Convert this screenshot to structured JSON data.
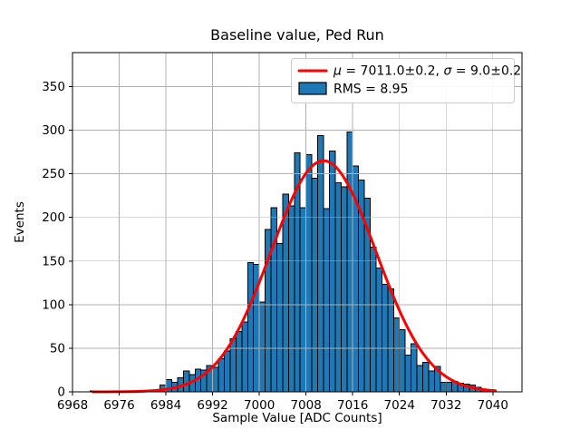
{
  "figure": {
    "title": "Baseline value, Ped Run",
    "xlabel": "Sample Value [ADC Counts]",
    "ylabel": "Events"
  },
  "legend": {
    "position": "upper right",
    "fit_label": "μ = 7011.0±0.2, σ = 9.0±0.2",
    "hist_label": "RMS = 8.95"
  },
  "colors": {
    "bar_fill": "#1f77b4",
    "bar_edge": "#000000",
    "fit_line": "#ff0000",
    "grid": "#b0b0b0",
    "axes": "#000000",
    "legend_border": "#cccccc",
    "background": "#ffffff"
  },
  "chart_data": {
    "type": "bar",
    "subtype": "histogram",
    "title": "Baseline value, Ped Run",
    "xlabel": "Sample Value [ADC Counts]",
    "ylabel": "Events",
    "xlim": [
      6968,
      7045
    ],
    "ylim": [
      0,
      389
    ],
    "x_ticks": [
      6968,
      6976,
      6984,
      6992,
      7000,
      7008,
      7016,
      7024,
      7032,
      7040
    ],
    "y_ticks": [
      0,
      50,
      100,
      150,
      200,
      250,
      300,
      350
    ],
    "grid": true,
    "bin_width": 1,
    "bins": [
      [
        6971,
        1
      ],
      [
        6983,
        8
      ],
      [
        6984,
        14
      ],
      [
        6985,
        11
      ],
      [
        6986,
        16
      ],
      [
        6987,
        24
      ],
      [
        6988,
        20
      ],
      [
        6989,
        26
      ],
      [
        6990,
        25
      ],
      [
        6991,
        30
      ],
      [
        6992,
        28
      ],
      [
        6993,
        38
      ],
      [
        6994,
        47
      ],
      [
        6995,
        61
      ],
      [
        6996,
        69
      ],
      [
        6997,
        80
      ],
      [
        6998,
        148
      ],
      [
        6999,
        146
      ],
      [
        7000,
        103
      ],
      [
        7001,
        186
      ],
      [
        7002,
        211
      ],
      [
        7003,
        170
      ],
      [
        7004,
        227
      ],
      [
        7005,
        213
      ],
      [
        7006,
        274
      ],
      [
        7007,
        211
      ],
      [
        7008,
        272
      ],
      [
        7009,
        245
      ],
      [
        7010,
        294
      ],
      [
        7011,
        210
      ],
      [
        7012,
        276
      ],
      [
        7013,
        240
      ],
      [
        7014,
        235
      ],
      [
        7015,
        298
      ],
      [
        7016,
        259
      ],
      [
        7017,
        243
      ],
      [
        7018,
        222
      ],
      [
        7019,
        166
      ],
      [
        7020,
        142
      ],
      [
        7021,
        123
      ],
      [
        7022,
        118
      ],
      [
        7023,
        85
      ],
      [
        7024,
        71
      ],
      [
        7025,
        42
      ],
      [
        7026,
        55
      ],
      [
        7027,
        30
      ],
      [
        7028,
        34
      ],
      [
        7029,
        24
      ],
      [
        7030,
        29
      ],
      [
        7031,
        11
      ],
      [
        7032,
        11
      ],
      [
        7033,
        12
      ],
      [
        7034,
        10
      ],
      [
        7035,
        9
      ],
      [
        7036,
        8
      ],
      [
        7037,
        5
      ],
      [
        7038,
        3
      ]
    ],
    "fit_curve": {
      "shape": "gaussian",
      "mu": 7011.0,
      "mu_err": 0.2,
      "sigma": 9.0,
      "sigma_err": 0.2,
      "amplitude": 265,
      "x_range": [
        6971.5,
        7040.7
      ],
      "rms": 8.95
    }
  }
}
